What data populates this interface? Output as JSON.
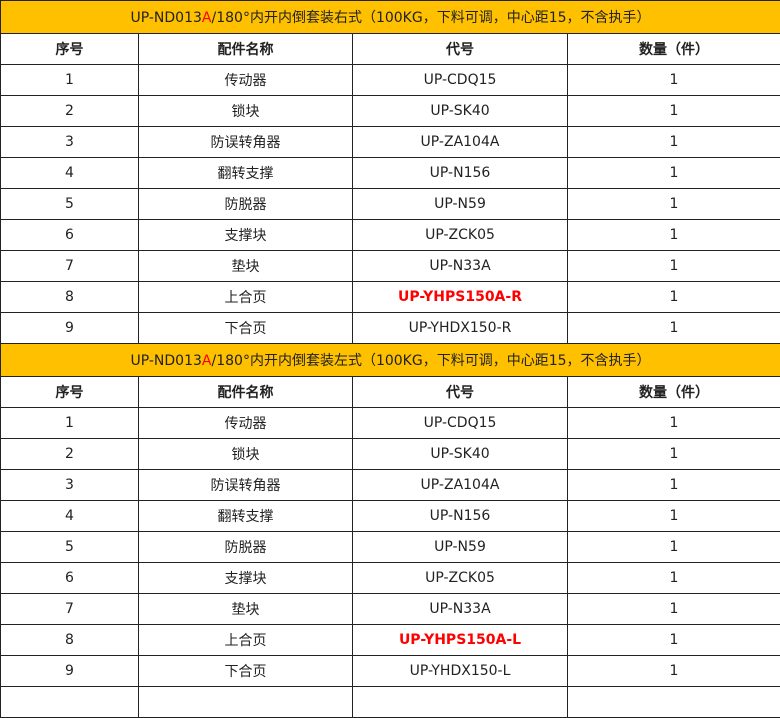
{
  "colors": {
    "title_bg": "#ffc000",
    "highlight": "#ff0000"
  },
  "headers": [
    "序号",
    "配件名称",
    "代号",
    "数量（件）"
  ],
  "sections": [
    {
      "title": {
        "prefix": "UP-ND013",
        "highlight": "A",
        "suffix": "/180°内开内倒套装右式（100KG，下料可调，中心距15，不含执手）"
      },
      "rows": [
        {
          "no": "1",
          "name": "传动器",
          "code": "UP-CDQ15",
          "qty": "1",
          "red": false
        },
        {
          "no": "2",
          "name": "锁块",
          "code": "UP-SK40",
          "qty": "1",
          "red": false
        },
        {
          "no": "3",
          "name": "防误转角器",
          "code": "UP-ZA104A",
          "qty": "1",
          "red": false
        },
        {
          "no": "4",
          "name": "翻转支撑",
          "code": "UP-N156",
          "qty": "1",
          "red": false
        },
        {
          "no": "5",
          "name": "防脱器",
          "code": "UP-N59",
          "qty": "1",
          "red": false
        },
        {
          "no": "6",
          "name": "支撑块",
          "code": "UP-ZCK05",
          "qty": "1",
          "red": false
        },
        {
          "no": "7",
          "name": "垫块",
          "code": "UP-N33A",
          "qty": "1",
          "red": false
        },
        {
          "no": "8",
          "name": "上合页",
          "code": "UP-YHPS150A-R",
          "qty": "1",
          "red": true
        },
        {
          "no": "9",
          "name": "下合页",
          "code": "UP-YHDX150-R",
          "qty": "1",
          "red": false
        }
      ]
    },
    {
      "title": {
        "prefix": "UP-ND013",
        "highlight": "A",
        "suffix": "/180°内开内倒套装左式（100KG，下料可调，中心距15，不含执手）"
      },
      "rows": [
        {
          "no": "1",
          "name": "传动器",
          "code": "UP-CDQ15",
          "qty": "1",
          "red": false
        },
        {
          "no": "2",
          "name": "锁块",
          "code": "UP-SK40",
          "qty": "1",
          "red": false
        },
        {
          "no": "3",
          "name": "防误转角器",
          "code": "UP-ZA104A",
          "qty": "1",
          "red": false
        },
        {
          "no": "4",
          "name": "翻转支撑",
          "code": "UP-N156",
          "qty": "1",
          "red": false
        },
        {
          "no": "5",
          "name": "防脱器",
          "code": "UP-N59",
          "qty": "1",
          "red": false
        },
        {
          "no": "6",
          "name": "支撑块",
          "code": "UP-ZCK05",
          "qty": "1",
          "red": false
        },
        {
          "no": "7",
          "name": "垫块",
          "code": "UP-N33A",
          "qty": "1",
          "red": false
        },
        {
          "no": "8",
          "name": "上合页",
          "code": "UP-YHPS150A-L",
          "qty": "1",
          "red": true
        },
        {
          "no": "9",
          "name": "下合页",
          "code": "UP-YHDX150-L",
          "qty": "1",
          "red": false
        }
      ]
    }
  ]
}
